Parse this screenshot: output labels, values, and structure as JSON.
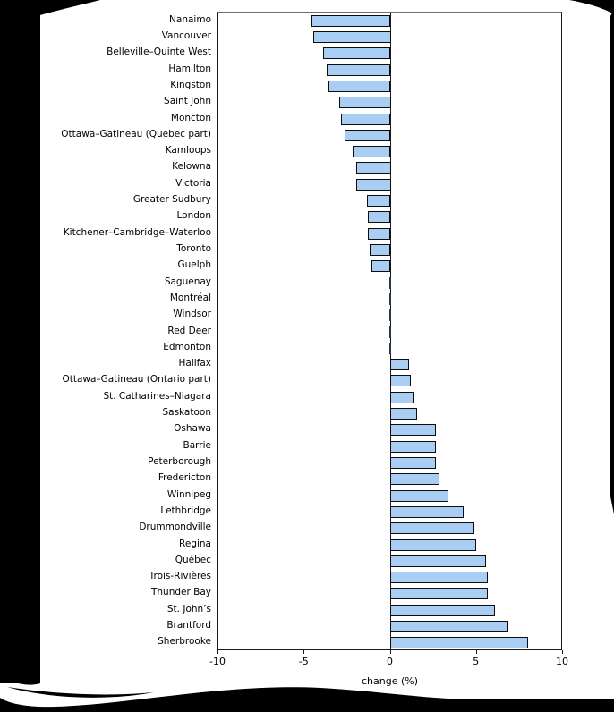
{
  "chart_data": {
    "type": "bar",
    "orientation": "horizontal",
    "title": "",
    "xlabel": "change (%)",
    "ylabel": "",
    "xlim": [
      -10,
      10
    ],
    "xticks": [
      -10,
      -5,
      0,
      5,
      10
    ],
    "xtick_labels": [
      "-10",
      "-5",
      "0",
      "5",
      "10"
    ],
    "grid": false,
    "legend": "none",
    "bar_fill_color": "#a9cdf3",
    "bar_border_color": "#0d0d0d",
    "categories": [
      "Nanaimo",
      "Vancouver",
      "Belleville–Quinte West",
      "Hamilton",
      "Kingston",
      "Saint John",
      "Moncton",
      "Ottawa–Gatineau (Quebec part)",
      "Kamloops",
      "Kelowna",
      "Victoria",
      "Greater Sudbury",
      "London",
      "Kitchener–Cambridge–Waterloo",
      "Toronto",
      "Guelph",
      "Saguenay",
      "Montréal",
      "Windsor",
      "Red Deer",
      "Edmonton",
      "Halifax",
      "Ottawa–Gatineau (Ontario part)",
      "St. Catharines–Niagara",
      "Saskatoon",
      "Oshawa",
      "Barrie",
      "Peterborough",
      "Fredericton",
      "Winnipeg",
      "Lethbridge",
      "Drummondville",
      "Regina",
      "Québec",
      "Trois-Rivières",
      "Thunder Bay",
      "St. John’s",
      "Brantford",
      "Sherbrooke"
    ],
    "values": [
      -4.6,
      -4.5,
      -3.9,
      -3.7,
      -3.6,
      -3.0,
      -2.9,
      -2.7,
      -2.2,
      -2.0,
      -2.0,
      -1.4,
      -1.3,
      -1.3,
      -1.2,
      -1.1,
      0.0,
      0.0,
      0.0,
      0.0,
      0.0,
      1.1,
      1.2,
      1.4,
      1.6,
      2.7,
      2.7,
      2.7,
      2.9,
      3.4,
      4.3,
      4.9,
      5.0,
      5.6,
      5.7,
      5.7,
      6.1,
      6.9,
      8.0
    ]
  }
}
